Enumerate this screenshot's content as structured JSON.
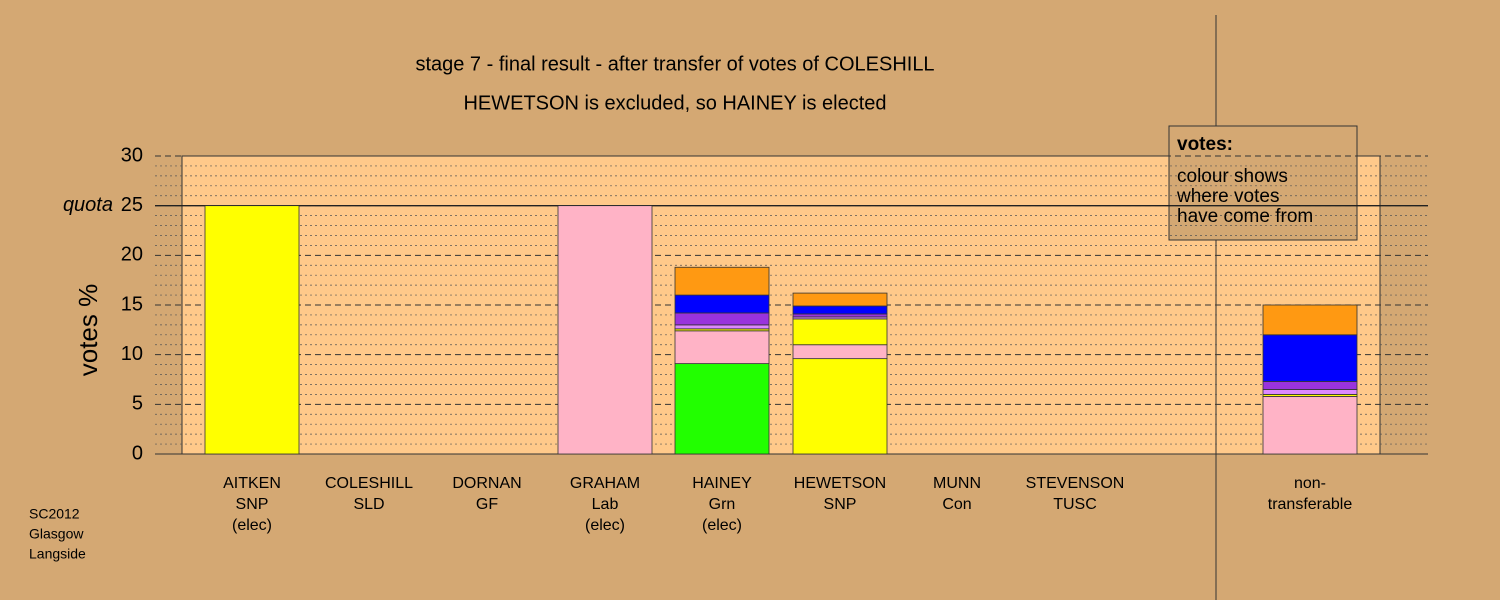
{
  "chart_data": {
    "type": "stacked-bar",
    "title": "stage 7 - final result - after transfer of votes of COLESHILL",
    "subtitle": "HEWETSON is excluded, so HAINEY is elected",
    "ylabel": "votes %",
    "categories": [
      [
        "AITKEN",
        "SNP",
        "(elec)"
      ],
      [
        "COLESHILL",
        "SLD"
      ],
      [
        "DORNAN",
        "GF"
      ],
      [
        "GRAHAM",
        "Lab",
        "(elec)"
      ],
      [
        "HAINEY",
        "Grn",
        "(elec)"
      ],
      [
        "HEWETSON",
        "SNP"
      ],
      [
        "MUNN",
        "Con"
      ],
      [
        "STEVENSON",
        "TUSC"
      ],
      [
        "non-",
        "transferable"
      ]
    ],
    "series": [
      {
        "color": "#22ff00",
        "values": [
          0,
          0,
          0,
          0,
          9.1,
          0,
          0,
          0,
          0
        ]
      },
      {
        "color": "#ffff00",
        "values": [
          25,
          0,
          0,
          0,
          0,
          9.6,
          0,
          0,
          0
        ]
      },
      {
        "color": "#ffb3c6",
        "values": [
          0,
          0,
          0,
          25,
          3.3,
          1.4,
          0,
          0,
          5.8
        ]
      },
      {
        "color": "#ffff00",
        "values": [
          0,
          0,
          0,
          0,
          0.2,
          2.6,
          0,
          0,
          0.2
        ]
      },
      {
        "color": "#dd88ff",
        "values": [
          0,
          0,
          0,
          0,
          0.4,
          0.2,
          0,
          0,
          0.5
        ]
      },
      {
        "color": "#9933dd",
        "values": [
          0,
          0,
          0,
          0,
          1.2,
          0.3,
          0,
          0,
          0.8
        ]
      },
      {
        "color": "#0000ff",
        "values": [
          0,
          0,
          0,
          0,
          1.8,
          0.8,
          0,
          0,
          4.7
        ]
      },
      {
        "color": "#ff9912",
        "values": [
          0,
          0,
          0,
          0,
          2.8,
          1.3,
          0,
          0,
          3.0
        ]
      }
    ],
    "ylim": [
      0,
      30
    ],
    "yticks": [
      0,
      5,
      10,
      15,
      20,
      25,
      30
    ],
    "yminorticks": [
      1,
      2,
      3,
      4,
      6,
      7,
      8,
      9,
      11,
      12,
      13,
      14,
      16,
      17,
      18,
      19,
      21,
      22,
      23,
      24,
      26,
      27,
      28,
      29
    ],
    "quota": {
      "value": 25,
      "label": "quota"
    },
    "legend": {
      "title": "votes:",
      "lines": [
        "colour shows",
        "where votes",
        "have come from"
      ]
    },
    "footnote": [
      "SC2012",
      "Glasgow",
      "Langside"
    ]
  }
}
